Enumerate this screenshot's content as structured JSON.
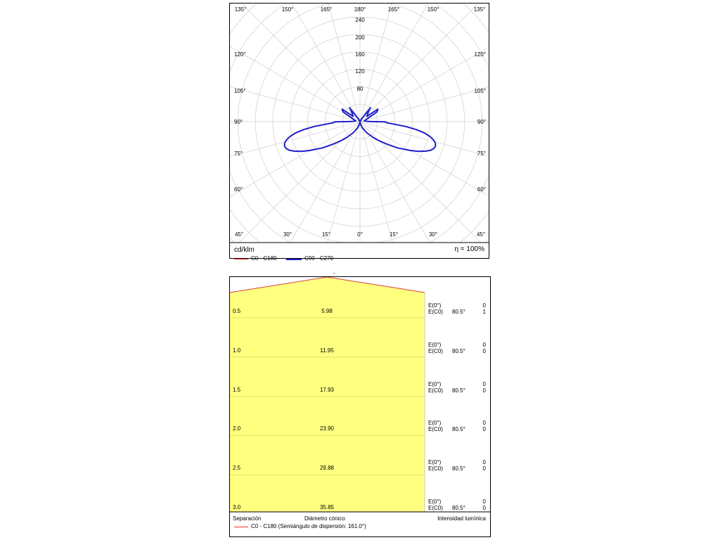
{
  "polar": {
    "unit": "cd/klm",
    "efficiency": "η = 100%",
    "top_angle_labels": [
      "135°",
      "150°",
      "165°",
      "180°",
      "165°",
      "150°",
      "135°"
    ],
    "left_angle_labels": [
      "120°",
      "105°",
      "90°",
      "75°",
      "60°"
    ],
    "right_angle_labels": [
      "120°",
      "105°",
      "90°",
      "75°",
      "60°"
    ],
    "bottom_angle_labels": [
      "45°",
      "30°",
      "15°",
      "0°",
      "15°",
      "30°",
      "45°"
    ],
    "radial_labels": [
      "80",
      "120",
      "160",
      "200",
      "240"
    ],
    "legend": [
      {
        "name": "C0 - C180",
        "color": "#ff2a2a"
      },
      {
        "name": "C90 - C270",
        "color": "#1e1ec8"
      }
    ]
  },
  "chart_data": [
    {
      "type": "polar",
      "r_ticks": [
        40,
        80,
        120,
        160,
        200,
        240
      ],
      "angle_step_deg": 15,
      "series": [
        {
          "name": "C90 - C270",
          "color": "#1e1ec8",
          "points": [
            [
              0,
              0
            ],
            [
              10,
              5
            ],
            [
              20,
              15
            ],
            [
              30,
              28
            ],
            [
              40,
              48
            ],
            [
              45,
              62
            ],
            [
              50,
              80
            ],
            [
              55,
              105
            ],
            [
              60,
              132
            ],
            [
              63,
              150
            ],
            [
              66,
              166
            ],
            [
              68,
              175
            ],
            [
              70,
              180
            ],
            [
              72,
              182
            ],
            [
              74,
              180
            ],
            [
              76,
              174
            ],
            [
              78,
              164
            ],
            [
              80,
              150
            ],
            [
              82,
              130
            ],
            [
              84,
              105
            ],
            [
              86,
              75
            ],
            [
              88,
              60
            ],
            [
              89.5,
              58
            ],
            [
              90,
              30
            ],
            [
              91,
              18
            ],
            [
              100,
              10
            ],
            [
              120,
              45
            ],
            [
              125,
              50
            ],
            [
              128,
              20
            ],
            [
              140,
              30
            ],
            [
              143,
              40
            ],
            [
              150,
              8
            ],
            [
              180,
              0
            ]
          ]
        }
      ]
    },
    {
      "type": "table",
      "title": "Diámetro cónico",
      "half_angle_label": "C0 - C180 (Semiángulo de dispersión: 161.0°)",
      "columns": [
        "Separación",
        "Diámetro cónico",
        "Intensidad lumínica"
      ],
      "rows": [
        {
          "separation": "0.5",
          "diameter": "5.98",
          "e0_label": "E(0°)",
          "e0_value": "0",
          "ec_label": "E(C0)",
          "ec_angle": "80.5°",
          "ec_value": "1"
        },
        {
          "separation": "1.0",
          "diameter": "11.95",
          "e0_label": "E(0°)",
          "e0_value": "0",
          "ec_label": "E(C0)",
          "ec_angle": "80.5°",
          "ec_value": "0"
        },
        {
          "separation": "1.5",
          "diameter": "17.93",
          "e0_label": "E(0°)",
          "e0_value": "0",
          "ec_label": "E(C0)",
          "ec_angle": "80.5°",
          "ec_value": "0"
        },
        {
          "separation": "2.0",
          "diameter": "23.90",
          "e0_label": "E(0°)",
          "e0_value": "0",
          "ec_label": "E(C0)",
          "ec_angle": "80.5°",
          "ec_value": "0"
        },
        {
          "separation": "2.5",
          "diameter": "29.88",
          "e0_label": "E(0°)",
          "e0_value": "0",
          "ec_label": "E(C0)",
          "ec_angle": "80.5°",
          "ec_value": "0"
        },
        {
          "separation": "3.0",
          "diameter": "35.85",
          "e0_label": "E(0°)",
          "e0_value": "0",
          "ec_label": "E(C0)",
          "ec_angle": "80.5°",
          "ec_value": "0"
        }
      ]
    }
  ],
  "cone": {
    "top_mark": "-",
    "fill_color": "#ffff80",
    "line_color": "#d84040"
  }
}
